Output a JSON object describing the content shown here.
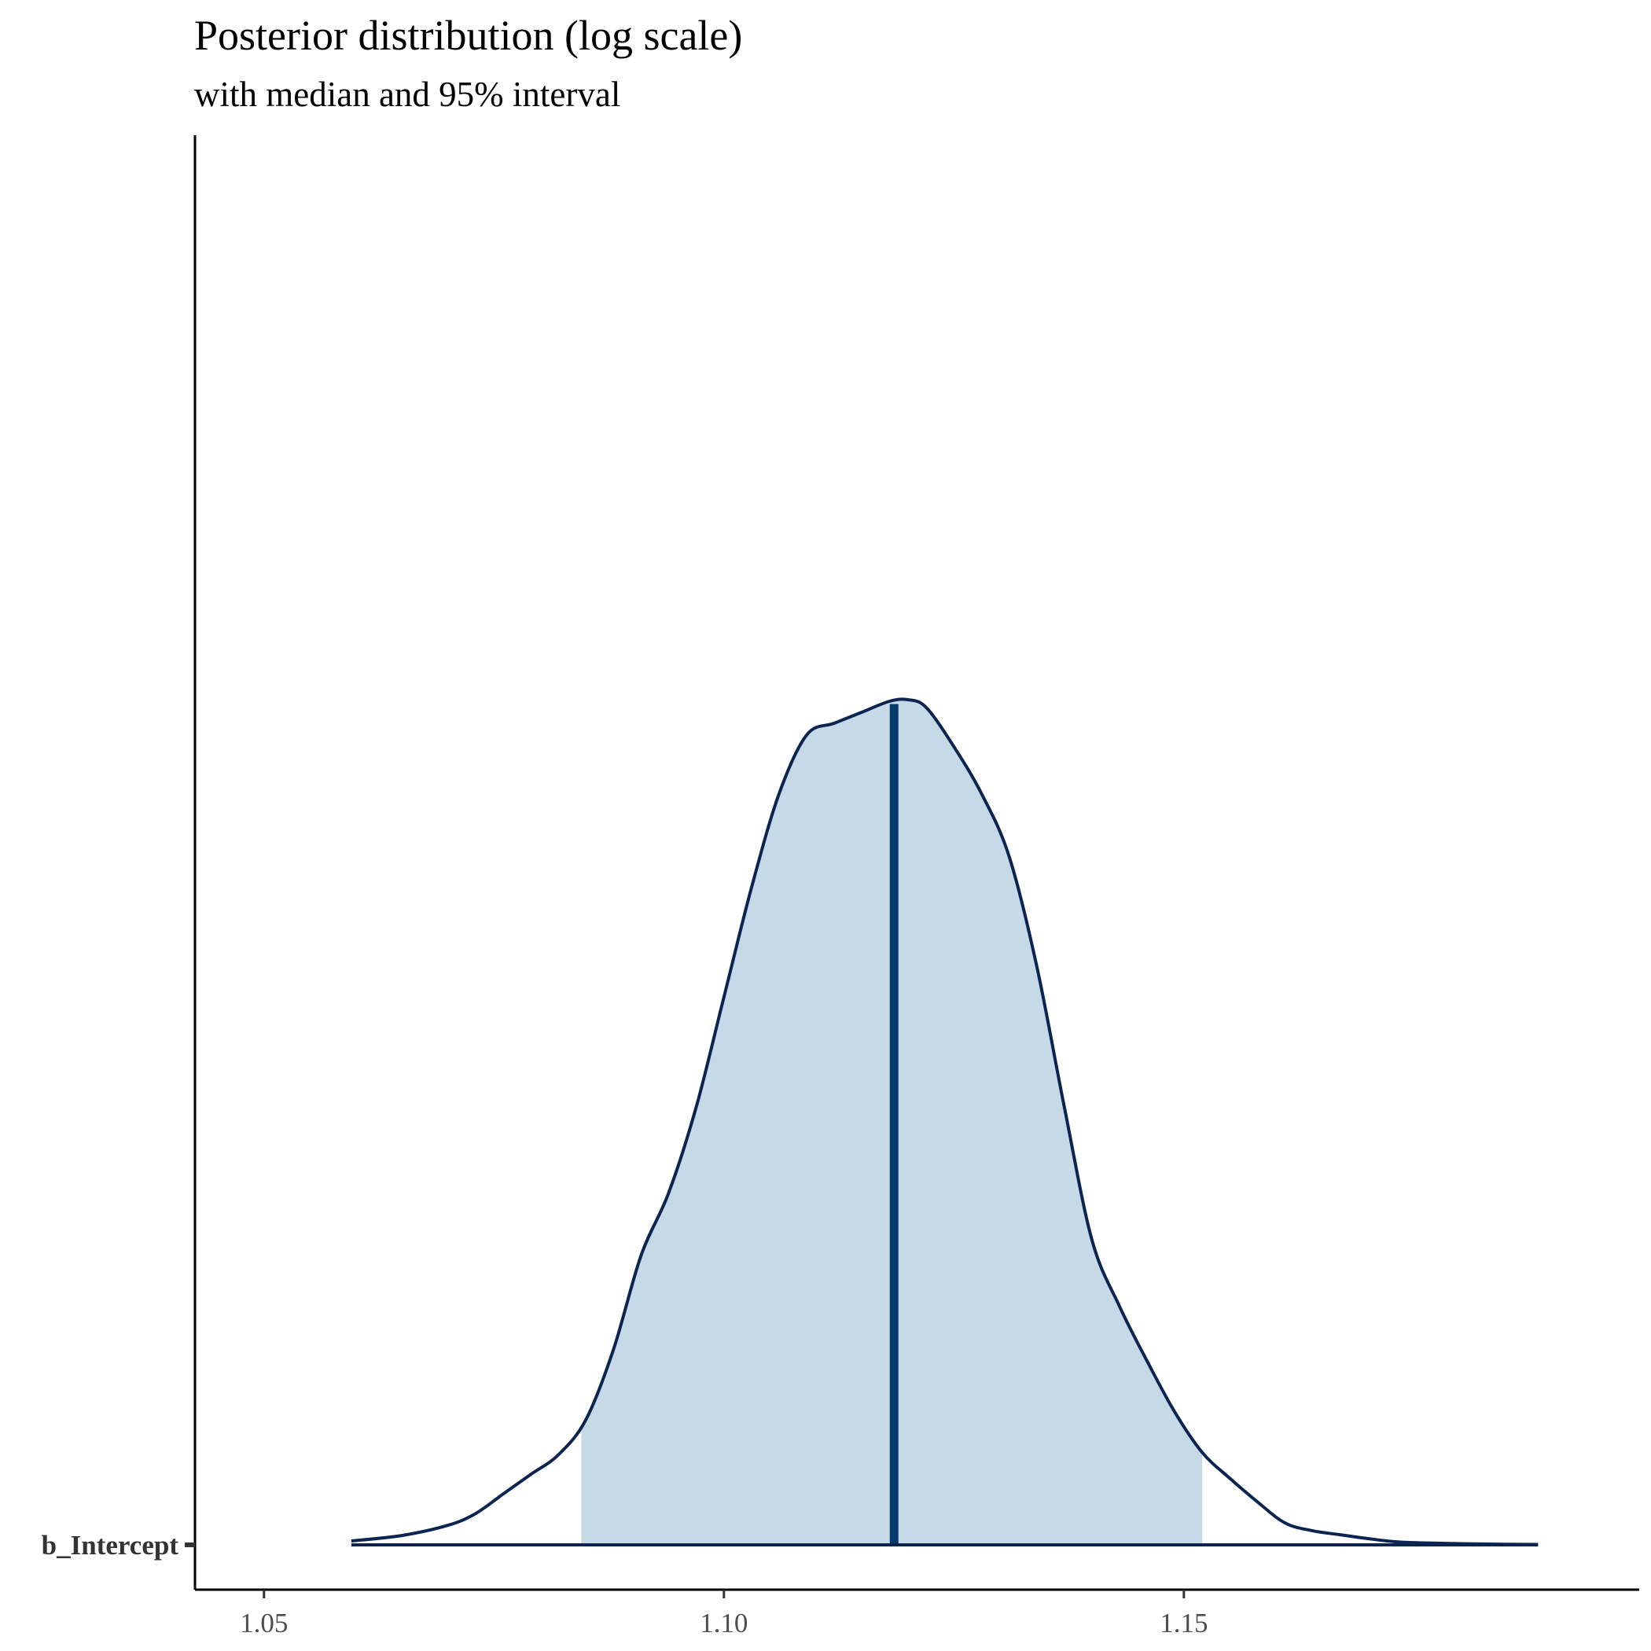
{
  "chart_data": {
    "type": "area",
    "title": "Posterior distribution (log scale)",
    "subtitle": "with median and 95% interval",
    "parameter": "b_Intercept",
    "xlabel": "",
    "ylabel": "",
    "xlim": [
      1.0425,
      1.1995
    ],
    "x_ticks": [
      1.05,
      1.1,
      1.15
    ],
    "x_tick_labels": [
      "1.05",
      "1.10",
      "1.15"
    ],
    "grid": false,
    "legend": "none",
    "median": 1.1185,
    "interval_95": [
      1.0845,
      1.152
    ],
    "density": {
      "x": [
        1.0595,
        1.065,
        1.07,
        1.073,
        1.076,
        1.079,
        1.082,
        1.085,
        1.088,
        1.091,
        1.094,
        1.097,
        1.1,
        1.103,
        1.106,
        1.109,
        1.112,
        1.115,
        1.118,
        1.12,
        1.122,
        1.125,
        1.128,
        1.131,
        1.134,
        1.137,
        1.14,
        1.143,
        1.146,
        1.149,
        1.152,
        1.155,
        1.158,
        1.161,
        1.164,
        1.167,
        1.17,
        1.173,
        1.176,
        1.18,
        1.185,
        1.1885
      ],
      "y": [
        0.005,
        0.012,
        0.025,
        0.04,
        0.065,
        0.09,
        0.115,
        0.16,
        0.25,
        0.37,
        0.45,
        0.56,
        0.7,
        0.84,
        0.96,
        1.035,
        1.05,
        1.064,
        1.078,
        1.08,
        1.07,
        1.02,
        0.96,
        0.88,
        0.74,
        0.56,
        0.39,
        0.305,
        0.235,
        0.17,
        0.118,
        0.085,
        0.055,
        0.028,
        0.018,
        0.013,
        0.008,
        0.004,
        0.0025,
        0.0015,
        0.0008,
        0.0005
      ]
    },
    "colors": {
      "fill": "#c6d9e7",
      "line": "#0b2550",
      "median": "#05396b",
      "axis": "#000000",
      "tick_label": "#4d4d4d",
      "param_label": "#333333"
    }
  }
}
